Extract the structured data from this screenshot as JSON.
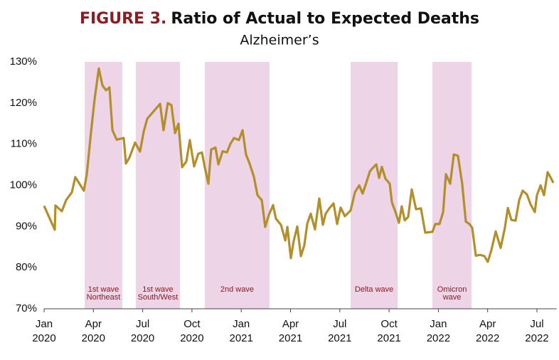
{
  "chart_data": {
    "type": "line",
    "title_prefix": "FIGURE 3.",
    "title": "Ratio of Actual to Expected Deaths",
    "subtitle": "Alzheimer’s",
    "color": "#b38f2c",
    "band_color": "#edd4e7",
    "x": [
      0,
      0.65,
      0.69,
      1.08,
      1.34,
      1.69,
      1.9,
      2.42,
      2.6,
      2.86,
      3.07,
      3.33,
      3.55,
      3.77,
      3.98,
      4.16,
      4.42,
      4.63,
      4.85,
      4.98,
      5.19,
      5.54,
      5.84,
      6.06,
      6.28,
      6.54,
      6.8,
      7.06,
      7.27,
      7.53,
      7.75,
      7.97,
      8.18,
      8.4,
      8.66,
      8.87,
      9.13,
      9.39,
      9.61,
      9.78,
      10.0,
      10.17,
      10.43,
      10.61,
      10.87,
      11.13,
      11.34,
      11.56,
      11.86,
      12.08,
      12.29,
      12.51,
      12.77,
      12.99,
      13.25,
      13.46,
      13.68,
      13.94,
      14.11,
      14.42,
      14.68,
      14.81,
      15.02,
      15.19,
      15.41,
      15.63,
      15.84,
      16.02,
      16.23,
      16.49,
      16.75,
      16.97,
      17.14,
      17.36,
      17.62,
      17.84,
      18.05,
      18.31,
      18.66,
      18.92,
      19.18,
      19.39,
      19.61,
      19.83,
      20.0,
      20.22,
      20.39,
      20.56,
      20.78,
      21.04,
      21.17,
      21.39,
      21.6,
      21.77,
      21.95,
      22.16,
      22.38,
      22.64,
      22.94,
      23.2,
      23.64,
      23.81,
      24.07,
      24.29,
      24.46,
      24.72,
      24.94,
      25.19,
      25.45,
      25.67,
      25.89,
      26.06,
      26.28,
      26.54,
      26.8,
      27.01,
      27.23,
      27.49,
      27.79,
      28.05,
      28.23,
      28.44,
      28.7,
      28.92,
      29.13,
      29.39,
      29.61,
      29.87,
      30.0,
      30.22,
      30.43,
      30.65,
      30.82,
      31.0
    ],
    "values": [
      95,
      89.2,
      95.1,
      93.7,
      96.4,
      98.3,
      102,
      98.7,
      102.7,
      113,
      120.8,
      128.4,
      124.3,
      123.1,
      123.8,
      113.4,
      111.1,
      111.3,
      111.5,
      105.3,
      106.7,
      110.4,
      108.2,
      113,
      116.2,
      117.4,
      118.6,
      119.8,
      113.4,
      120,
      119.5,
      112.7,
      115,
      104.4,
      105.8,
      111,
      104.6,
      107.7,
      108,
      104.4,
      100.4,
      108.7,
      109.2,
      105.1,
      108.3,
      108,
      110.1,
      111.5,
      111,
      113.4,
      107.5,
      105.3,
      102.1,
      97.6,
      96.4,
      89.9,
      92.8,
      95.2,
      91.9,
      90.4,
      86.6,
      89.9,
      82.3,
      86.4,
      90,
      82.8,
      85.4,
      90.7,
      93.1,
      89.3,
      96.8,
      90.4,
      93.1,
      94.4,
      95.6,
      90.6,
      94.6,
      92.5,
      93.9,
      98.3,
      100,
      98,
      100.6,
      103.4,
      104.2,
      105.1,
      101.8,
      104.5,
      101.6,
      100.4,
      95.9,
      93.5,
      90.9,
      94.9,
      91.5,
      92.3,
      99,
      94.2,
      94.4,
      88.5,
      88.7,
      90.6,
      90.6,
      93.5,
      102.7,
      100.4,
      107.5,
      107.2,
      100.4,
      91.2,
      90.6,
      89.7,
      82.9,
      83.1,
      82.8,
      81.4,
      84.3,
      88.8,
      84.8,
      89.7,
      94.5,
      91.6,
      91.4,
      96.4,
      98.7,
      97.8,
      95.4,
      93.5,
      97.6,
      100,
      97.6,
      103.2,
      102,
      100.6
    ],
    "xlim": [
      0,
      31.2
    ],
    "xticks": [
      {
        "value": 0,
        "label": "Jan 2020"
      },
      {
        "value": 3,
        "label": "Apr 2020"
      },
      {
        "value": 6,
        "label": "Jul 2020"
      },
      {
        "value": 9,
        "label": "Oct 2020"
      },
      {
        "value": 12,
        "label": "Jan 2021"
      },
      {
        "value": 15,
        "label": "Apr 2021"
      },
      {
        "value": 18,
        "label": "Jul 2021"
      },
      {
        "value": 21,
        "label": "Oct 2021"
      },
      {
        "value": 24,
        "label": "Jan 2022"
      },
      {
        "value": 27,
        "label": "Apr 2022"
      },
      {
        "value": 30,
        "label": "Jul 2022"
      }
    ],
    "ylim": [
      70,
      130
    ],
    "yticks": [
      {
        "value": 70,
        "label": "70%"
      },
      {
        "value": 80,
        "label": "80%"
      },
      {
        "value": 90,
        "label": "90%"
      },
      {
        "value": 100,
        "label": "100%"
      },
      {
        "value": 110,
        "label": "110%"
      },
      {
        "value": 120,
        "label": "120%"
      },
      {
        "value": 130,
        "label": "130%"
      }
    ],
    "bands": [
      {
        "range": [
          2.47,
          4.76
        ],
        "label_lines": [
          "1st wave",
          "Northeast"
        ]
      },
      {
        "range": [
          5.58,
          8.27
        ],
        "label_lines": [
          "1st wave",
          "South/West"
        ]
      },
      {
        "range": [
          9.78,
          13.72
        ],
        "label_lines": [
          "2nd wave"
        ]
      },
      {
        "range": [
          18.66,
          21.52
        ],
        "label_lines": [
          "Delta wave"
        ]
      },
      {
        "range": [
          23.64,
          26.02
        ],
        "label_lines": [
          "Omicron",
          "wave"
        ]
      }
    ]
  }
}
